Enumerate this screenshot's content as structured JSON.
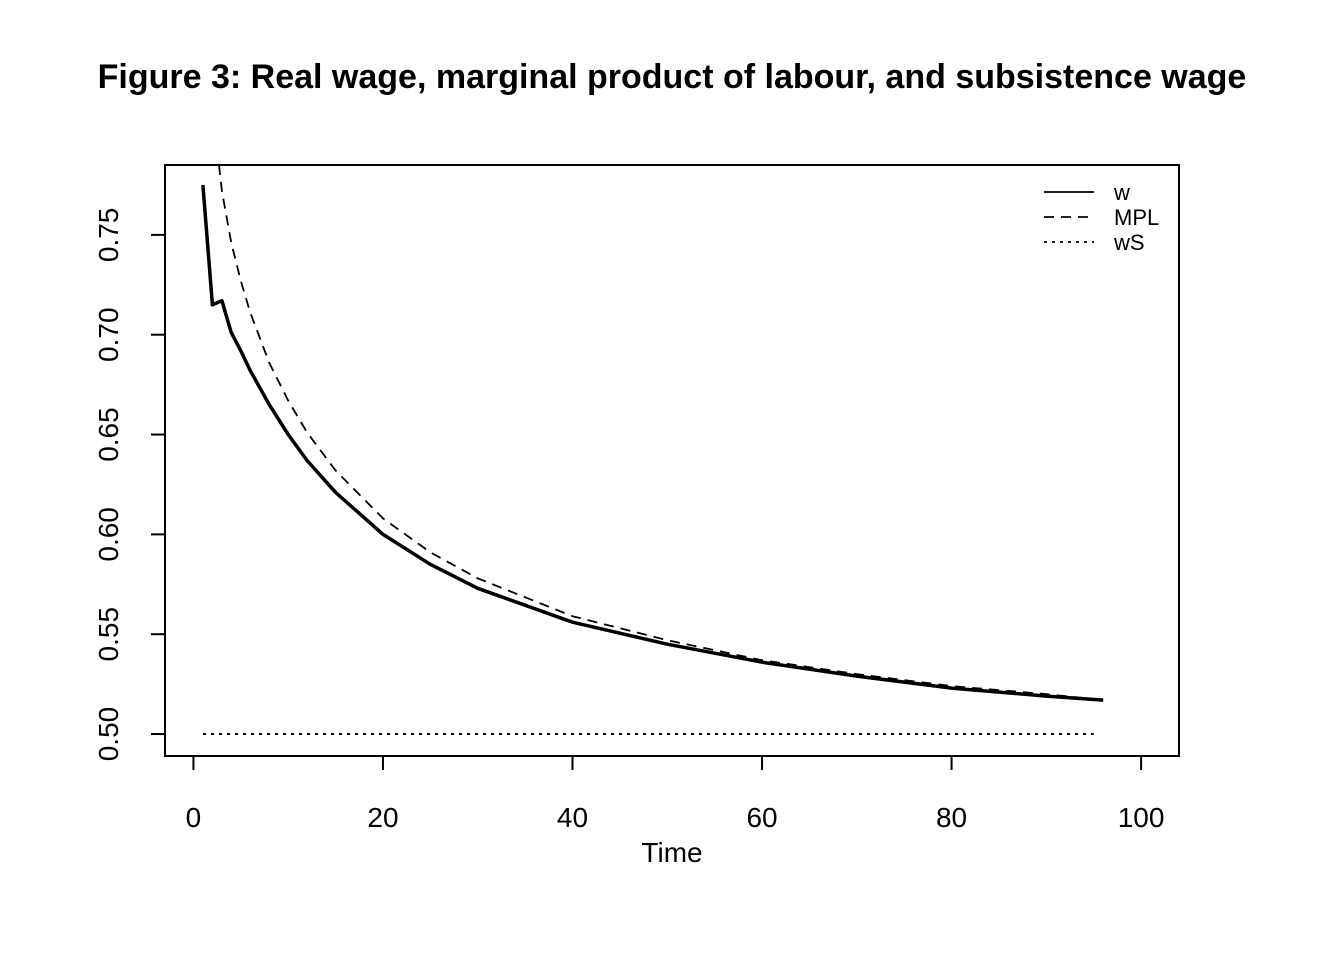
{
  "chart_data": {
    "type": "line",
    "title": "Figure 3: Real wage, marginal product of labour, and subsistence wage",
    "xlabel": "Time",
    "ylabel": "",
    "xlim": [
      -3,
      104
    ],
    "ylim": [
      0.489,
      0.785
    ],
    "x_ticks": [
      0,
      20,
      40,
      60,
      80,
      100
    ],
    "x_tick_labels": [
      "0",
      "20",
      "40",
      "60",
      "80",
      "100"
    ],
    "y_ticks": [
      0.5,
      0.55,
      0.6,
      0.65,
      0.7,
      0.75
    ],
    "y_tick_labels": [
      "0.50",
      "0.55",
      "0.60",
      "0.65",
      "0.70",
      "0.75"
    ],
    "grid": false,
    "legend_position": "top-right",
    "series": [
      {
        "name": "w",
        "line_style": "solid",
        "color": "#000000",
        "x": [
          1,
          2,
          3,
          4,
          5,
          6,
          8,
          10,
          12,
          15,
          20,
          25,
          30,
          40,
          50,
          60,
          70,
          80,
          90,
          96
        ],
        "values": [
          0.775,
          0.715,
          0.717,
          0.701,
          0.692,
          0.682,
          0.665,
          0.65,
          0.637,
          0.621,
          0.6,
          0.585,
          0.573,
          0.556,
          0.545,
          0.536,
          0.529,
          0.523,
          0.519,
          0.517
        ]
      },
      {
        "name": "MPL",
        "line_style": "dashed",
        "color": "#000000",
        "x": [
          2.7,
          3,
          4,
          5,
          6,
          8,
          10,
          12,
          15,
          20,
          25,
          30,
          40,
          50,
          60,
          70,
          80,
          90,
          96
        ],
        "values": [
          0.785,
          0.772,
          0.746,
          0.727,
          0.711,
          0.686,
          0.667,
          0.651,
          0.632,
          0.608,
          0.591,
          0.578,
          0.559,
          0.547,
          0.537,
          0.53,
          0.524,
          0.52,
          0.517
        ]
      },
      {
        "name": "wS",
        "line_style": "dotted",
        "color": "#000000",
        "x": [
          1,
          95
        ],
        "values": [
          0.5,
          0.5
        ]
      }
    ]
  }
}
